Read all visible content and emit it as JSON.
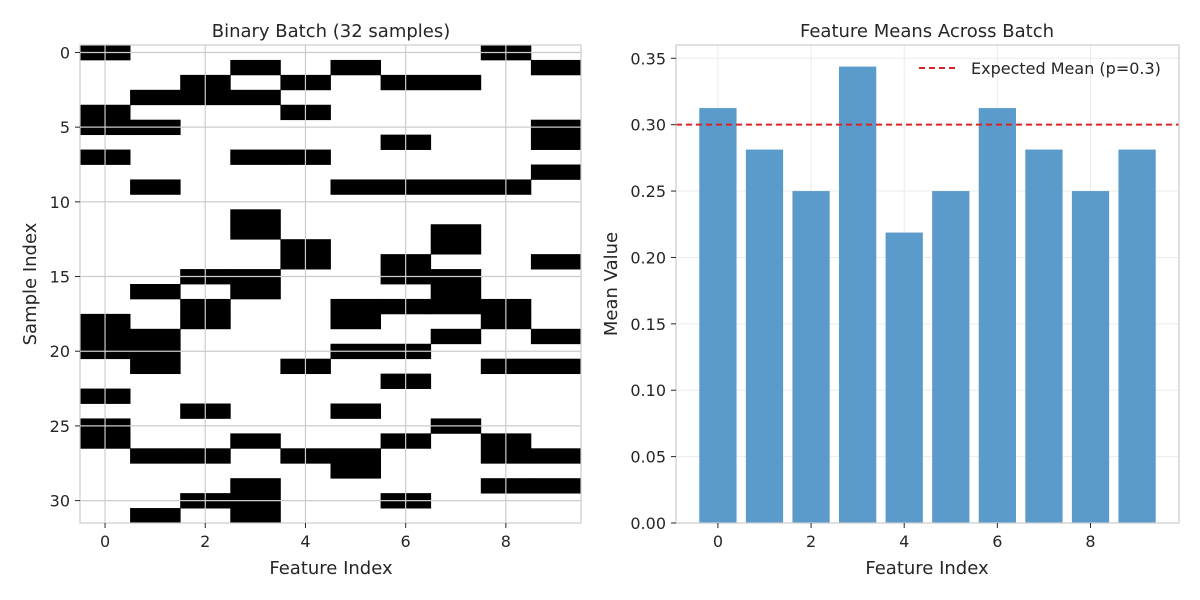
{
  "chart_data": [
    {
      "type": "heatmap",
      "title": "Binary Batch (32 samples)",
      "xlabel": "Feature Index",
      "ylabel": "Sample Index",
      "xlim": [
        -0.5,
        9.5
      ],
      "ylim": [
        -0.5,
        31.5
      ],
      "xticks": [
        0,
        2,
        4,
        6,
        8
      ],
      "yticks": [
        0,
        5,
        10,
        15,
        20,
        25,
        30
      ],
      "y_inverted": true,
      "grid": true,
      "colormap": {
        "0": "#ffffff",
        "1": "#000000"
      },
      "rows": [
        [
          1,
          0,
          0,
          0,
          0,
          0,
          0,
          0,
          1,
          0
        ],
        [
          0,
          0,
          0,
          1,
          0,
          1,
          0,
          0,
          0,
          1
        ],
        [
          0,
          0,
          1,
          0,
          1,
          0,
          1,
          1,
          0,
          0
        ],
        [
          0,
          1,
          1,
          1,
          0,
          0,
          0,
          0,
          0,
          0
        ],
        [
          1,
          0,
          0,
          0,
          1,
          0,
          0,
          0,
          0,
          0
        ],
        [
          1,
          1,
          0,
          0,
          0,
          0,
          0,
          0,
          0,
          1
        ],
        [
          0,
          0,
          0,
          0,
          0,
          0,
          1,
          0,
          0,
          1
        ],
        [
          1,
          0,
          0,
          1,
          1,
          0,
          0,
          0,
          0,
          0
        ],
        [
          0,
          0,
          0,
          0,
          0,
          0,
          0,
          0,
          0,
          1
        ],
        [
          0,
          1,
          0,
          0,
          0,
          1,
          1,
          1,
          1,
          0
        ],
        [
          0,
          0,
          0,
          0,
          0,
          0,
          0,
          0,
          0,
          0
        ],
        [
          0,
          0,
          0,
          1,
          0,
          0,
          0,
          0,
          0,
          0
        ],
        [
          0,
          0,
          0,
          1,
          0,
          0,
          0,
          1,
          0,
          0
        ],
        [
          0,
          0,
          0,
          0,
          1,
          0,
          0,
          1,
          0,
          0
        ],
        [
          0,
          0,
          0,
          0,
          1,
          0,
          1,
          0,
          0,
          1
        ],
        [
          0,
          0,
          1,
          1,
          0,
          0,
          1,
          1,
          0,
          0
        ],
        [
          0,
          1,
          0,
          1,
          0,
          0,
          0,
          1,
          0,
          0
        ],
        [
          0,
          0,
          1,
          0,
          0,
          1,
          1,
          1,
          1,
          0
        ],
        [
          1,
          0,
          1,
          0,
          0,
          1,
          0,
          0,
          1,
          0
        ],
        [
          1,
          1,
          0,
          0,
          0,
          0,
          0,
          1,
          0,
          1
        ],
        [
          1,
          1,
          0,
          0,
          0,
          1,
          1,
          0,
          0,
          0
        ],
        [
          0,
          1,
          0,
          0,
          1,
          0,
          0,
          0,
          1,
          1
        ],
        [
          0,
          0,
          0,
          0,
          0,
          0,
          1,
          0,
          0,
          0
        ],
        [
          1,
          0,
          0,
          0,
          0,
          0,
          0,
          0,
          0,
          0
        ],
        [
          0,
          0,
          1,
          0,
          0,
          1,
          0,
          0,
          0,
          0
        ],
        [
          1,
          0,
          0,
          0,
          0,
          0,
          0,
          1,
          0,
          0
        ],
        [
          1,
          0,
          0,
          1,
          0,
          0,
          1,
          0,
          1,
          0
        ],
        [
          0,
          1,
          1,
          0,
          1,
          1,
          0,
          0,
          1,
          1
        ],
        [
          0,
          0,
          0,
          0,
          0,
          1,
          0,
          0,
          0,
          0
        ],
        [
          0,
          0,
          0,
          1,
          0,
          0,
          0,
          0,
          1,
          1
        ],
        [
          0,
          0,
          1,
          1,
          0,
          0,
          1,
          0,
          0,
          0
        ],
        [
          0,
          1,
          0,
          1,
          0,
          0,
          0,
          0,
          0,
          0
        ]
      ]
    },
    {
      "type": "bar",
      "title": "Feature Means Across Batch",
      "xlabel": "Feature Index",
      "ylabel": "Mean Value",
      "categories": [
        0,
        1,
        2,
        3,
        4,
        5,
        6,
        7,
        8,
        9
      ],
      "values": [
        0.3125,
        0.28125,
        0.25,
        0.34375,
        0.21875,
        0.25,
        0.3125,
        0.28125,
        0.25,
        0.28125
      ],
      "ylim": [
        0,
        0.36
      ],
      "xlim": [
        -0.9,
        9.9
      ],
      "xticks": [
        0,
        2,
        4,
        6,
        8
      ],
      "yticks": [
        0.0,
        0.05,
        0.1,
        0.15,
        0.2,
        0.25,
        0.3,
        0.35
      ],
      "ytick_labels": [
        "0.00",
        "0.05",
        "0.10",
        "0.15",
        "0.20",
        "0.25",
        "0.30",
        "0.35"
      ],
      "bar_color": "#5b9bcc",
      "grid": true,
      "reference_line": {
        "label": "Expected Mean (p=0.3)",
        "value": 0.3,
        "color": "#d62728",
        "style": "dashed"
      },
      "legend": {
        "position": "top-right"
      }
    }
  ]
}
